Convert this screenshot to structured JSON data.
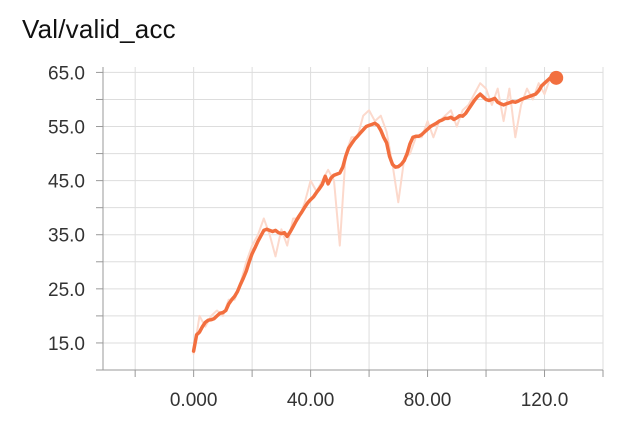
{
  "title": "Val/valid_acc",
  "colors": {
    "smoothed": "#f26f3f",
    "raw": "#fcd9cc",
    "grid": "#dddddd",
    "axis": "#999999"
  },
  "chart_data": {
    "type": "line",
    "title": "Val/valid_acc",
    "xlabel": "",
    "ylabel": "",
    "xlim": [
      -31,
      140
    ],
    "ylim": [
      10,
      66
    ],
    "x_ticks": [
      0,
      40,
      80,
      120
    ],
    "x_tick_labels": [
      "0.000",
      "40.00",
      "80.00",
      "120.0"
    ],
    "y_ticks": [
      15,
      25,
      35,
      45,
      55,
      65
    ],
    "y_tick_labels": [
      "15.0",
      "25.0",
      "35.0",
      "45.0",
      "55.0",
      "65.0"
    ],
    "grid": true,
    "series": [
      {
        "style": "raw",
        "x": [
          0,
          2,
          4,
          6,
          8,
          10,
          12,
          14,
          16,
          18,
          20,
          22,
          24,
          26,
          28,
          30,
          32,
          34,
          36,
          38,
          40,
          42,
          44,
          46,
          48,
          50,
          52,
          54,
          56,
          58,
          60,
          62,
          64,
          66,
          68,
          70,
          72,
          74,
          76,
          78,
          80,
          82,
          84,
          86,
          88,
          90,
          92,
          94,
          96,
          98,
          100,
          102,
          104,
          106,
          108,
          110,
          112,
          114,
          116,
          118,
          120,
          122,
          124
        ],
        "y": [
          13,
          20,
          18,
          20,
          21,
          20,
          23,
          23,
          26,
          30,
          33,
          35,
          38,
          35,
          31,
          36,
          33,
          38,
          38,
          41,
          45,
          43,
          45,
          47,
          45,
          33,
          50,
          53,
          53,
          57,
          58,
          56,
          57,
          54,
          48,
          41,
          49,
          50,
          53,
          53,
          56,
          53,
          56,
          57,
          58,
          55,
          58,
          59,
          61,
          63,
          62,
          59,
          62,
          56,
          62,
          53,
          59,
          62,
          60,
          63,
          61,
          64,
          64
        ]
      },
      {
        "style": "smoothed",
        "x": [
          0,
          1,
          2,
          3,
          4,
          5,
          6,
          7,
          8,
          9,
          10,
          11,
          12,
          13,
          14,
          15,
          16,
          17,
          18,
          19,
          20,
          21,
          22,
          23,
          24,
          25,
          26,
          27,
          28,
          29,
          30,
          31,
          32,
          33,
          34,
          35,
          36,
          37,
          38,
          39,
          40,
          41,
          42,
          43,
          44,
          45,
          46,
          47,
          48,
          49,
          50,
          51,
          52,
          53,
          54,
          55,
          56,
          57,
          58,
          59,
          60,
          61,
          62,
          63,
          64,
          65,
          66,
          67,
          68,
          69,
          70,
          71,
          72,
          73,
          74,
          75,
          76,
          77,
          78,
          79,
          80,
          81,
          82,
          83,
          84,
          85,
          86,
          87,
          88,
          89,
          90,
          91,
          92,
          93,
          94,
          95,
          96,
          97,
          98,
          99,
          100,
          101,
          102,
          103,
          104,
          105,
          106,
          107,
          108,
          109,
          110,
          111,
          112,
          113,
          114,
          115,
          116,
          117,
          118,
          119,
          120,
          121,
          122,
          123,
          124
        ],
        "y": [
          13.5,
          16.5,
          17.0,
          18.0,
          18.8,
          19.2,
          19.3,
          19.5,
          20.0,
          20.5,
          20.6,
          21.0,
          22.2,
          23.0,
          23.6,
          24.5,
          25.8,
          27.0,
          28.3,
          30.0,
          31.5,
          32.6,
          33.8,
          34.8,
          35.8,
          36.0,
          35.8,
          35.6,
          35.8,
          35.4,
          35.2,
          35.4,
          34.7,
          35.5,
          36.5,
          37.5,
          38.4,
          39.2,
          40.1,
          40.9,
          41.5,
          42.0,
          42.8,
          43.5,
          44.3,
          45.8,
          44.4,
          45.5,
          46.0,
          46.2,
          46.4,
          47.5,
          49.5,
          51.0,
          51.8,
          52.6,
          53.2,
          53.8,
          54.4,
          55.0,
          55.2,
          55.4,
          55.6,
          55.2,
          54.3,
          53.0,
          52.0,
          49.5,
          48.0,
          47.5,
          47.6,
          48.0,
          48.7,
          50.0,
          51.8,
          53.0,
          53.2,
          53.2,
          53.5,
          54.0,
          54.5,
          55.0,
          55.3,
          55.6,
          56.0,
          56.2,
          56.5,
          56.5,
          56.7,
          56.3,
          56.6,
          57.0,
          56.9,
          57.4,
          58.2,
          59.0,
          59.8,
          60.5,
          61.0,
          60.5,
          60.0,
          59.8,
          60.0,
          60.2,
          59.5,
          59.2,
          59.0,
          59.2,
          59.4,
          59.6,
          59.5,
          59.7,
          60.0,
          60.2,
          60.4,
          60.6,
          60.8,
          61.0,
          61.6,
          62.5,
          63.0,
          63.5,
          64.0,
          64.0,
          64.0
        ]
      }
    ],
    "marker": {
      "x": 124,
      "y": 64
    }
  }
}
